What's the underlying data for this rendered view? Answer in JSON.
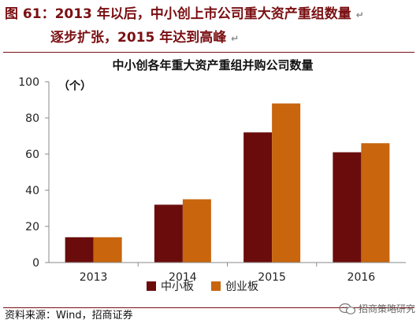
{
  "figure": {
    "title_line1": "图 61：2013 年以后，中小创上市公司重大资产重组数量",
    "title_line2": "逐步扩张，2015 年达到高峰",
    "source": "资料来源：Wind，招商证券",
    "watermark": "招商策略研究"
  },
  "colors": {
    "title": "#7a0f12",
    "series_1": "#6b0c0c",
    "series_2": "#c8650d"
  },
  "chart_data": {
    "type": "bar",
    "title": "中小创各年重大资产重组并购公司数量",
    "unit_label": "（个）",
    "categories": [
      "2013",
      "2014",
      "2015",
      "2016"
    ],
    "series": [
      {
        "name": "中小板",
        "values": [
          14,
          32,
          72,
          61
        ]
      },
      {
        "name": "创业板",
        "values": [
          14,
          35,
          88,
          66
        ]
      }
    ],
    "ylim": [
      0,
      100
    ],
    "yticks": [
      0,
      20,
      40,
      60,
      80,
      100
    ],
    "grid": false,
    "legend_position": "bottom-center"
  }
}
